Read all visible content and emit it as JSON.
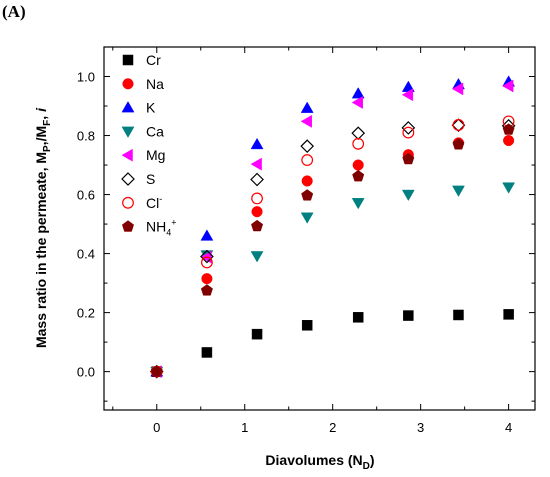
{
  "panel_label": "(A)",
  "chart_data": {
    "type": "scatter",
    "title": "",
    "xlabel": {
      "main": "Diavolumes (N",
      "sub": "D",
      "tail": ")"
    },
    "ylabel": {
      "main": "Mass ratio in the permeate, M",
      "sub1": "P",
      "mid": ",/M",
      "sub2": "F",
      "tail": ",",
      "italic": "i"
    },
    "xlim": [
      -0.6,
      4.3
    ],
    "ylim": [
      -0.13,
      1.1
    ],
    "x_ticks": [
      "0",
      "1",
      "2",
      "3",
      "4"
    ],
    "y_ticks": [
      "0.0",
      "0.2",
      "0.4",
      "0.6",
      "0.8",
      "1.0"
    ],
    "legend_position": "top-left",
    "x": [
      0,
      0.57,
      1.14,
      1.71,
      2.29,
      2.86,
      3.43,
      4.0
    ],
    "series": [
      {
        "name": "Cr",
        "marker": "square",
        "color": "#000000",
        "filled": true,
        "values": [
          0.0,
          0.065,
          0.127,
          0.157,
          0.184,
          0.19,
          0.192,
          0.194
        ]
      },
      {
        "name": "Na",
        "marker": "circle",
        "color": "#ff0000",
        "filled": true,
        "values": [
          0.0,
          0.315,
          0.542,
          0.646,
          0.7,
          0.735,
          0.775,
          0.783
        ]
      },
      {
        "name": "K",
        "marker": "triangle-up",
        "color": "#0000ff",
        "filled": true,
        "values": [
          0.0,
          0.46,
          0.77,
          0.893,
          0.942,
          0.964,
          0.973,
          0.982
        ]
      },
      {
        "name": "Ca",
        "marker": "triangle-down",
        "color": "#008080",
        "filled": true,
        "values": [
          0.0,
          0.395,
          0.392,
          0.523,
          0.572,
          0.6,
          0.614,
          0.625
        ]
      },
      {
        "name": "Mg",
        "marker": "triangle-left",
        "color": "#ff00ff",
        "filled": true,
        "values": [
          0.0,
          0.388,
          0.703,
          0.848,
          0.912,
          0.938,
          0.958,
          0.968
        ]
      },
      {
        "name": "S",
        "marker": "diamond",
        "color": "#000000",
        "filled": false,
        "values": [
          0.0,
          0.39,
          0.651,
          0.764,
          0.808,
          0.826,
          0.835,
          0.833
        ]
      },
      {
        "name": "Cl",
        "sup": "-",
        "marker": "circle",
        "color": "#ff0000",
        "filled": false,
        "values": [
          0.0,
          0.37,
          0.587,
          0.717,
          0.772,
          0.81,
          0.836,
          0.848
        ]
      },
      {
        "name": "NH",
        "sub": "4",
        "sup": "+",
        "marker": "pentagon",
        "color": "#800000",
        "filled": true,
        "values": [
          0.0,
          0.275,
          0.493,
          0.597,
          0.662,
          0.72,
          0.77,
          0.82
        ]
      }
    ]
  }
}
